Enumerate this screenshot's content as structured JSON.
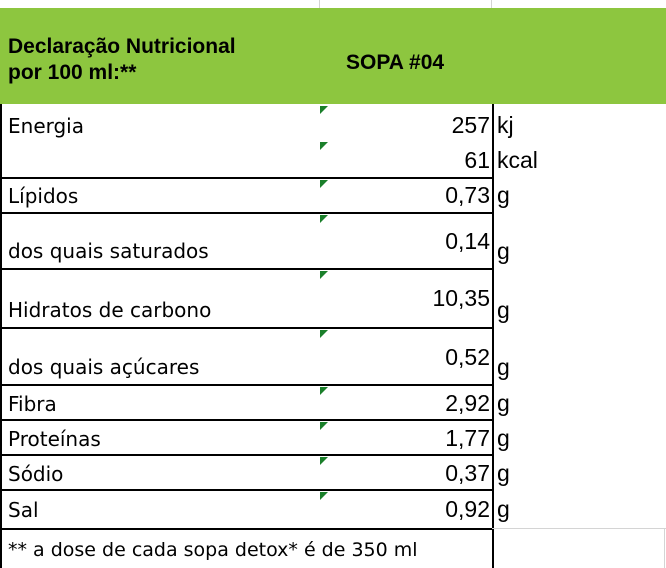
{
  "table": {
    "header": {
      "title_line1": "Declaração Nutricional",
      "title_line2": "por 100 ml:**",
      "product": "SOPA #04"
    },
    "rows": [
      {
        "label": "Energia",
        "value": "257",
        "unit": "kj"
      },
      {
        "label": "",
        "value": "61",
        "unit": "kcal"
      },
      {
        "label": "Lípidos",
        "value": "0,73",
        "unit": "g"
      },
      {
        "label": "dos quais saturados",
        "value": "0,14",
        "unit": "g"
      },
      {
        "label": "Hidratos de carbono",
        "value": "10,35",
        "unit": "g"
      },
      {
        "label": "dos quais açúcares",
        "value": "0,52",
        "unit": "g"
      },
      {
        "label": "Fibra",
        "value": "2,92",
        "unit": "g"
      },
      {
        "label": "Proteínas",
        "value": "1,77",
        "unit": "g"
      },
      {
        "label": "Sódio",
        "value": "0,37",
        "unit": "g"
      },
      {
        "label": "Sal",
        "value": "0,92",
        "unit": "g"
      }
    ],
    "footnote": "** a dose de cada sopa detox* é de 350 ml"
  },
  "colors": {
    "header_bg": "#8dc63f",
    "marker": "#1a7f2a"
  }
}
